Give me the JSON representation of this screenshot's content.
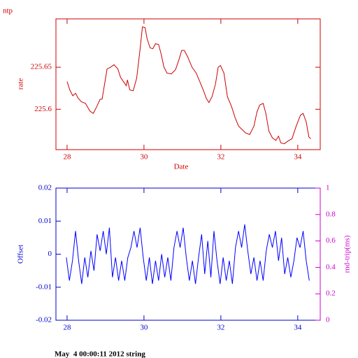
{
  "chart_data": [
    {
      "type": "line",
      "title": "ntp",
      "xlabel": "Date",
      "ylabel": "rate",
      "color": "#cc0000",
      "xlim": [
        27.71,
        34.585
      ],
      "xticks": [
        28,
        30,
        32,
        34
      ],
      "ylim": [
        225.552,
        225.7075
      ],
      "yticks": [
        225.6,
        225.65
      ],
      "series": [
        {
          "color": "#cc0000",
          "x": [
            28.0,
            28.07,
            28.15,
            28.22,
            28.29,
            28.37,
            28.48,
            28.59,
            28.68,
            28.77,
            28.86,
            28.91,
            28.99,
            29.04,
            29.13,
            29.22,
            29.32,
            29.39,
            29.48,
            29.54,
            29.57,
            29.63,
            29.72,
            29.81,
            29.9,
            29.96,
            30.03,
            30.08,
            30.16,
            30.23,
            30.3,
            30.38,
            30.45,
            30.52,
            30.6,
            30.71,
            30.82,
            30.91,
            30.98,
            31.05,
            31.14,
            31.25,
            31.36,
            31.46,
            31.55,
            31.62,
            31.69,
            31.77,
            31.86,
            31.93,
            31.99,
            32.08,
            32.17,
            32.28,
            32.37,
            32.46,
            32.55,
            32.64,
            32.75,
            32.86,
            32.94,
            33.01,
            33.1,
            33.17,
            33.25,
            33.34,
            33.43,
            33.5,
            33.56,
            33.65,
            33.74,
            33.85,
            33.96,
            34.07,
            34.14,
            34.22,
            34.29,
            34.34
          ],
          "values": [
            225.633,
            225.623,
            225.616,
            225.619,
            225.613,
            225.609,
            225.607,
            225.598,
            225.595,
            225.603,
            225.612,
            225.612,
            225.634,
            225.648,
            225.65,
            225.653,
            225.648,
            225.638,
            225.632,
            225.628,
            225.635,
            225.623,
            225.622,
            225.637,
            225.672,
            225.698,
            225.697,
            225.684,
            225.673,
            225.672,
            225.678,
            225.677,
            225.665,
            225.65,
            225.643,
            225.642,
            225.647,
            225.659,
            225.67,
            225.67,
            225.662,
            225.65,
            225.643,
            225.632,
            225.622,
            225.613,
            225.608,
            225.615,
            225.63,
            225.65,
            225.652,
            225.643,
            225.615,
            225.603,
            225.59,
            225.58,
            225.576,
            225.572,
            225.57,
            225.58,
            225.597,
            225.605,
            225.607,
            225.595,
            225.574,
            225.566,
            225.563,
            225.568,
            225.56,
            225.559,
            225.562,
            225.565,
            225.58,
            225.593,
            225.595,
            225.585,
            225.567,
            225.565
          ]
        }
      ]
    },
    {
      "type": "line",
      "ylabel": "Offset",
      "y2label": "rnd-trip(ms)",
      "color": "#0000cc",
      "y2color": "#cc00cc",
      "xlim": [
        27.71,
        34.585
      ],
      "xticks": [
        28,
        30,
        32,
        34
      ],
      "ylim": [
        -0.02,
        0.02
      ],
      "yticks": [
        0.02,
        0.01,
        0,
        -0.01,
        -0.02
      ],
      "y2lim": [
        0,
        1
      ],
      "y2ticks": [
        0,
        0.2,
        0.4,
        0.6,
        0.8,
        1
      ],
      "series": [
        {
          "color": "#0000ff",
          "x": [
            27.98,
            28.06,
            28.14,
            28.22,
            28.3,
            28.38,
            28.46,
            28.54,
            28.62,
            28.7,
            28.78,
            28.86,
            28.94,
            29.02,
            29.1,
            29.18,
            29.26,
            29.34,
            29.42,
            29.5,
            29.58,
            29.66,
            29.74,
            29.82,
            29.9,
            29.98,
            30.06,
            30.14,
            30.22,
            30.3,
            30.38,
            30.46,
            30.54,
            30.62,
            30.7,
            30.78,
            30.86,
            30.94,
            31.02,
            31.1,
            31.18,
            31.26,
            31.34,
            31.42,
            31.5,
            31.58,
            31.66,
            31.74,
            31.82,
            31.9,
            31.98,
            32.06,
            32.14,
            32.22,
            32.3,
            32.38,
            32.46,
            32.54,
            32.62,
            32.7,
            32.78,
            32.86,
            32.94,
            33.02,
            33.1,
            33.18,
            33.26,
            33.34,
            33.42,
            33.5,
            33.58,
            33.66,
            33.74,
            33.82,
            33.9,
            33.98,
            34.06,
            34.14,
            34.22,
            34.3
          ],
          "values": [
            -0.001,
            -0.008,
            -0.002,
            0.007,
            -0.002,
            -0.009,
            -0.001,
            -0.007,
            0.001,
            -0.005,
            0.006,
            0.001,
            0.007,
            0.0,
            0.008,
            -0.007,
            -0.001,
            -0.008,
            -0.002,
            -0.008,
            -0.001,
            0.002,
            0.007,
            0.002,
            0.008,
            -0.001,
            -0.008,
            -0.001,
            -0.009,
            -0.002,
            -0.008,
            0.0,
            -0.007,
            -0.001,
            -0.008,
            0.002,
            0.007,
            0.002,
            0.008,
            -0.001,
            -0.008,
            -0.002,
            -0.009,
            -0.001,
            0.006,
            -0.006,
            0.004,
            -0.007,
            0.007,
            -0.002,
            -0.009,
            -0.001,
            -0.008,
            -0.002,
            -0.009,
            0.002,
            0.007,
            0.002,
            0.009,
            0.001,
            -0.006,
            -0.001,
            -0.008,
            -0.002,
            -0.008,
            0.001,
            0.006,
            0.002,
            0.007,
            -0.002,
            0.005,
            -0.006,
            -0.001,
            -0.007,
            -0.002,
            0.005,
            0.002,
            0.007,
            -0.002,
            -0.008
          ]
        }
      ]
    }
  ],
  "footer": "May  4 00:00:11 2012 string"
}
